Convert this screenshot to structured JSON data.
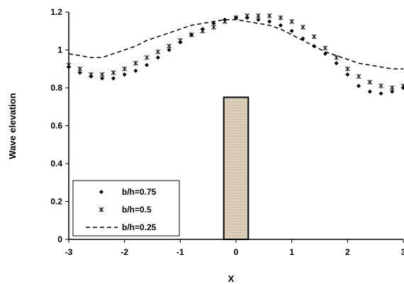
{
  "chart_data": {
    "type": "scatter",
    "title": "",
    "xlabel": "X",
    "ylabel": "Wave elevation",
    "xlim": [
      -3,
      3
    ],
    "ylim": [
      0,
      1.2
    ],
    "xticks": [
      "-3",
      "-2",
      "-1",
      "0",
      "1",
      "2",
      "3"
    ],
    "yticks": [
      "0",
      "0.2",
      "0.4",
      "0.6",
      "0.8",
      "1",
      "1.2"
    ],
    "grid": false,
    "legend_position": "bottom-left",
    "obstacle": {
      "x_range": [
        -0.22,
        0.22
      ],
      "height": 0.75,
      "color": "#d8cbb6"
    },
    "series": [
      {
        "name": "b/h=0.75",
        "marker": "diamond",
        "x": [
          -3.0,
          -2.8,
          -2.6,
          -2.4,
          -2.2,
          -2.0,
          -1.8,
          -1.6,
          -1.4,
          -1.2,
          -1.0,
          -0.8,
          -0.6,
          -0.4,
          -0.2,
          0.0,
          0.2,
          0.4,
          0.6,
          0.8,
          1.0,
          1.2,
          1.4,
          1.6,
          1.8,
          2.0,
          2.2,
          2.4,
          2.6,
          2.8,
          3.0
        ],
        "y": [
          0.91,
          0.88,
          0.86,
          0.85,
          0.85,
          0.87,
          0.89,
          0.92,
          0.96,
          1.0,
          1.04,
          1.08,
          1.11,
          1.14,
          1.16,
          1.17,
          1.17,
          1.16,
          1.15,
          1.13,
          1.1,
          1.06,
          1.02,
          0.98,
          0.93,
          0.87,
          0.81,
          0.78,
          0.77,
          0.78,
          0.8
        ]
      },
      {
        "name": "b/h=0.5",
        "marker": "asterisk",
        "x": [
          -3.0,
          -2.8,
          -2.6,
          -2.4,
          -2.2,
          -2.0,
          -1.8,
          -1.6,
          -1.4,
          -1.2,
          -1.0,
          -0.8,
          -0.6,
          -0.4,
          -0.2,
          0.0,
          0.2,
          0.4,
          0.6,
          0.8,
          1.0,
          1.2,
          1.4,
          1.6,
          1.8,
          2.0,
          2.2,
          2.4,
          2.6,
          2.8,
          3.0
        ],
        "y": [
          0.92,
          0.9,
          0.87,
          0.87,
          0.88,
          0.9,
          0.93,
          0.96,
          0.99,
          1.02,
          1.05,
          1.08,
          1.1,
          1.12,
          1.15,
          1.17,
          1.18,
          1.18,
          1.18,
          1.17,
          1.15,
          1.12,
          1.07,
          1.01,
          0.96,
          0.9,
          0.86,
          0.83,
          0.81,
          0.8,
          0.81
        ]
      },
      {
        "name": "b/h=0.25",
        "marker": "dashed-line",
        "x": [
          -3.0,
          -2.8,
          -2.6,
          -2.4,
          -2.2,
          -2.0,
          -1.8,
          -1.6,
          -1.4,
          -1.2,
          -1.0,
          -0.8,
          -0.6,
          -0.4,
          -0.2,
          0.0,
          0.2,
          0.4,
          0.6,
          0.8,
          1.0,
          1.2,
          1.4,
          1.6,
          1.8,
          2.0,
          2.2,
          2.4,
          2.6,
          2.8,
          3.0
        ],
        "y": [
          0.98,
          0.97,
          0.96,
          0.96,
          0.98,
          1.0,
          1.02,
          1.05,
          1.07,
          1.09,
          1.11,
          1.13,
          1.14,
          1.15,
          1.16,
          1.16,
          1.15,
          1.14,
          1.13,
          1.11,
          1.08,
          1.05,
          1.02,
          0.99,
          0.97,
          0.95,
          0.93,
          0.92,
          0.91,
          0.9,
          0.9
        ]
      }
    ]
  }
}
